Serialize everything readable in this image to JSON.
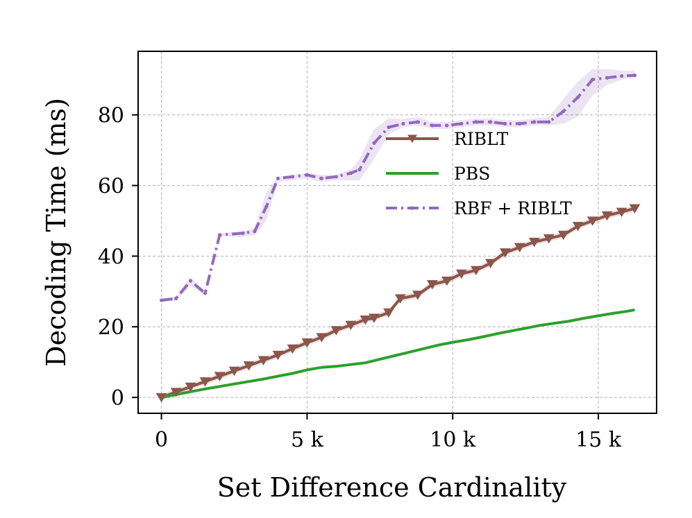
{
  "chart_data": {
    "type": "line",
    "title": "",
    "xlabel": "Set Difference Cardinality",
    "ylabel": "Decoding Time (ms)",
    "xlim": [
      -800,
      17000
    ],
    "ylim": [
      -4.5,
      98
    ],
    "xticks": [
      {
        "value": 0,
        "label": "0"
      },
      {
        "value": 5000,
        "label": "5 k"
      },
      {
        "value": 10000,
        "label": "10 k"
      },
      {
        "value": 15000,
        "label": "15 k"
      }
    ],
    "yticks": [
      {
        "value": 0,
        "label": "0"
      },
      {
        "value": 20,
        "label": "20"
      },
      {
        "value": 40,
        "label": "40"
      },
      {
        "value": 60,
        "label": "60"
      },
      {
        "value": 80,
        "label": "80"
      }
    ],
    "grid": true,
    "legend_position": "upper-center-right",
    "series": [
      {
        "name": "RIBLT",
        "color": "#8c564b",
        "style": "solid",
        "marker": "triangle-down",
        "band": 0.9,
        "x": [
          0,
          500,
          1000,
          1500,
          2000,
          2500,
          3000,
          3500,
          4000,
          4500,
          5000,
          5500,
          6000,
          6500,
          7000,
          7300,
          7800,
          8200,
          8800,
          9300,
          9800,
          10300,
          10800,
          11300,
          11800,
          12300,
          12800,
          13300,
          13800,
          14300,
          14800,
          15300,
          15800,
          16250
        ],
        "y": [
          0,
          1.5,
          3,
          4.5,
          6,
          7.5,
          9,
          10.5,
          12,
          13.8,
          15.5,
          17,
          19,
          20.5,
          22,
          22.5,
          24,
          28,
          29,
          32,
          33,
          35,
          36,
          38,
          41,
          42.5,
          44,
          45,
          46,
          48.5,
          50,
          51.5,
          52.5,
          53.5
        ]
      },
      {
        "name": "PBS",
        "color": "#2ca02c",
        "style": "solid",
        "marker": "none",
        "band": 0.3,
        "x": [
          0,
          500,
          1000,
          1500,
          2000,
          2500,
          3000,
          3500,
          4000,
          4500,
          5000,
          5500,
          6000,
          6500,
          7000,
          7500,
          8000,
          8500,
          9000,
          9500,
          10000,
          10500,
          11000,
          11500,
          12000,
          12500,
          13000,
          13500,
          14000,
          14500,
          15000,
          15500,
          16000,
          16250
        ],
        "y": [
          0,
          0.8,
          1.6,
          2.4,
          3.1,
          3.8,
          4.5,
          5.2,
          6.0,
          6.8,
          7.8,
          8.5,
          8.8,
          9.3,
          9.8,
          10.8,
          11.8,
          12.8,
          13.8,
          14.8,
          15.6,
          16.3,
          17.1,
          18.0,
          18.8,
          19.6,
          20.4,
          21.0,
          21.6,
          22.4,
          23.1,
          23.8,
          24.4,
          24.8
        ]
      },
      {
        "name": "RBF + RIBLT",
        "color": "#9467bd",
        "style": "dashdot",
        "marker": "dot",
        "x": [
          0,
          500,
          1000,
          1500,
          2000,
          2800,
          3200,
          3600,
          4000,
          4500,
          5000,
          5500,
          6000,
          6500,
          6800,
          7300,
          7800,
          8300,
          8800,
          9300,
          9800,
          10300,
          10800,
          11300,
          11800,
          12300,
          12800,
          13300,
          13800,
          14300,
          14800,
          15300,
          15800,
          16250
        ],
        "y": [
          27.5,
          28,
          33,
          29.5,
          46,
          46.5,
          47,
          54,
          62,
          62.5,
          63,
          62,
          62.5,
          63.5,
          64.5,
          72,
          76.5,
          77.5,
          78,
          77,
          77,
          77.5,
          78,
          78,
          77.5,
          77.5,
          78,
          78,
          81,
          85,
          90,
          90.5,
          91,
          91.2
        ],
        "band_lower": [
          27,
          27.5,
          31.5,
          29,
          45.5,
          45.5,
          46,
          50,
          61,
          61.5,
          62,
          61,
          61.5,
          61.5,
          61.5,
          67.5,
          74.5,
          76.5,
          77,
          76,
          76,
          76.5,
          77,
          77,
          76.5,
          76.5,
          77,
          77,
          77.5,
          79.5,
          85.5,
          88.5,
          90,
          90.5
        ],
        "band_upper": [
          28,
          28.5,
          34,
          30,
          46.5,
          47,
          48,
          58,
          62.5,
          63,
          63.5,
          63,
          63,
          64.5,
          67.5,
          76,
          79,
          78.8,
          79.5,
          78,
          78,
          78.5,
          79,
          79,
          78.5,
          78.5,
          79,
          79.5,
          84.5,
          89.5,
          93,
          93,
          92.5,
          92.5
        ]
      }
    ]
  }
}
